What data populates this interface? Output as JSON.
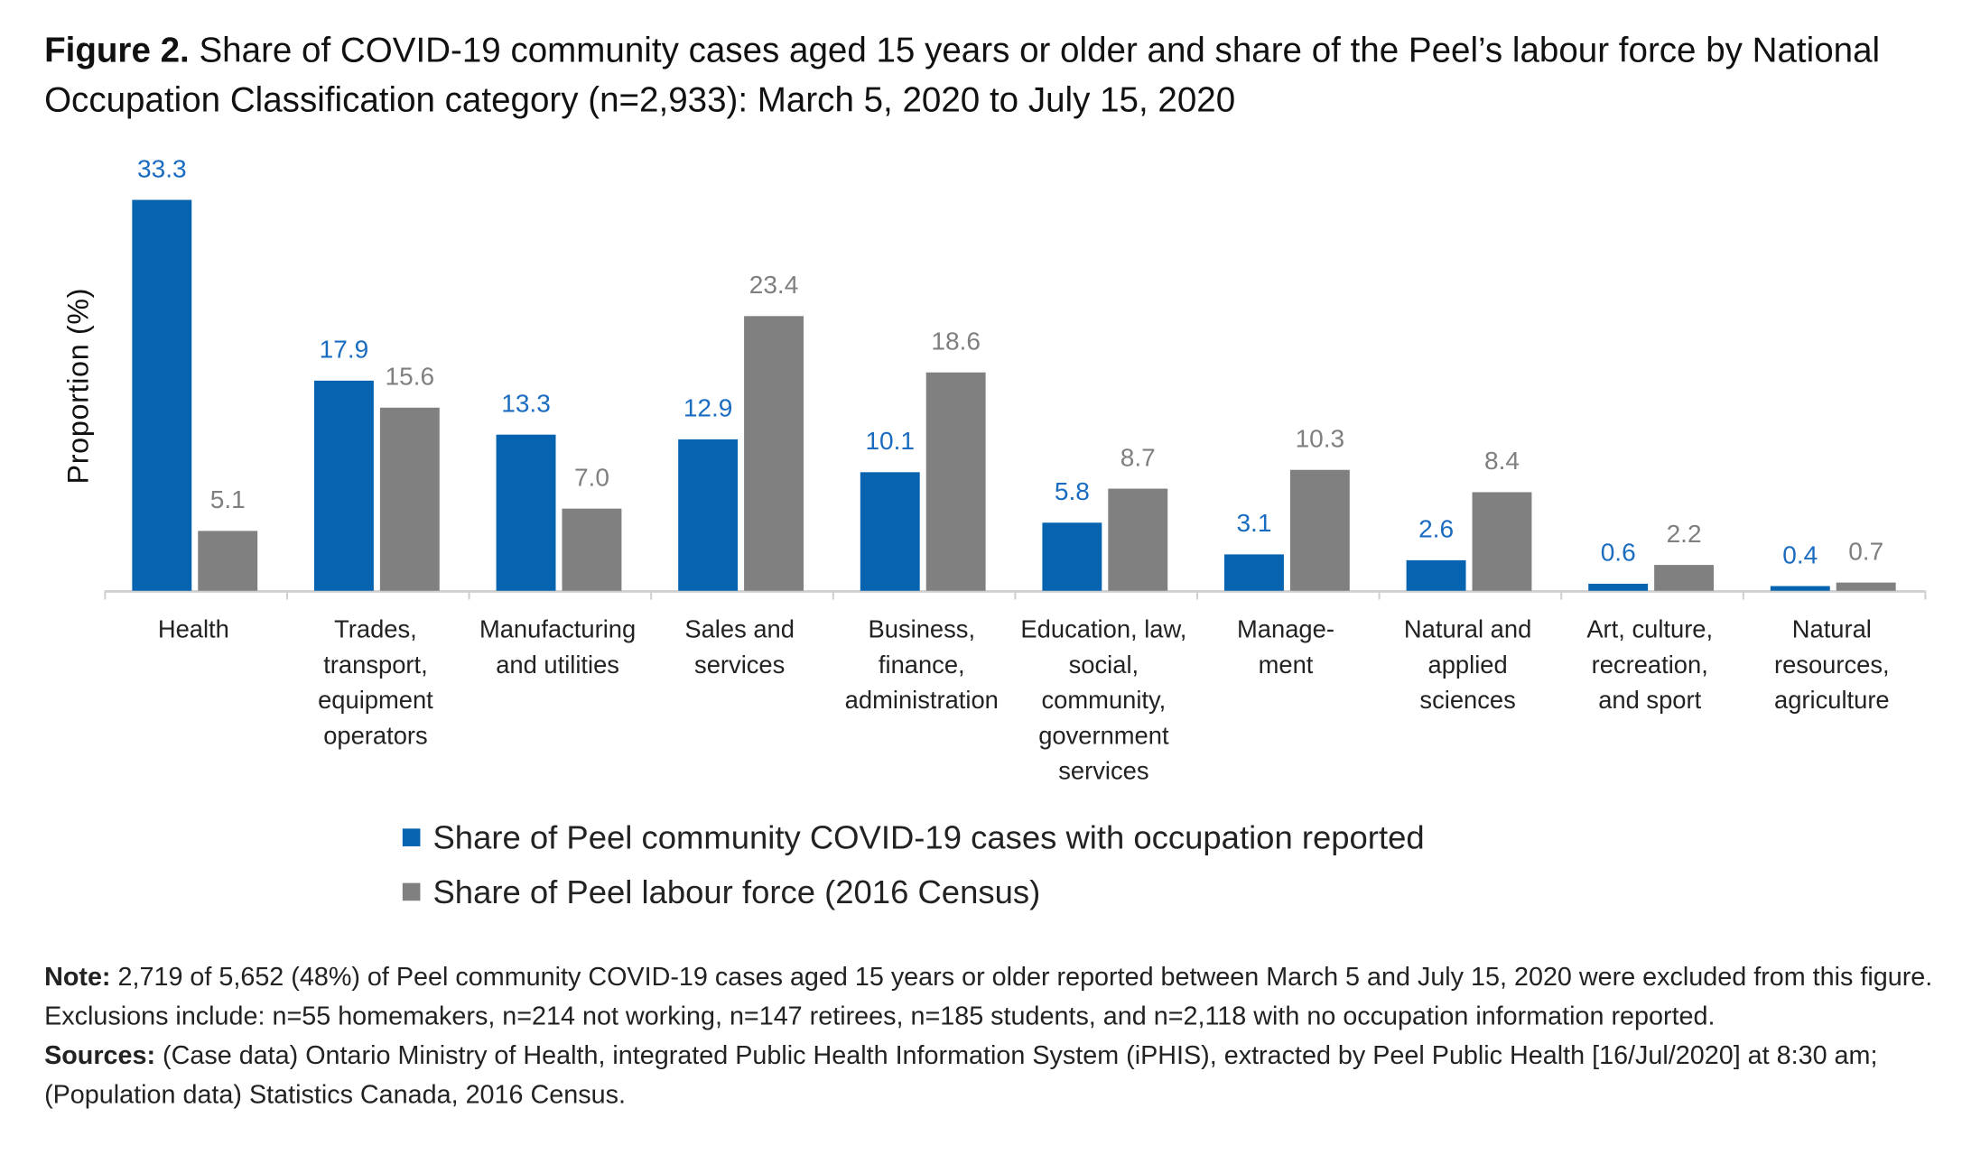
{
  "title": {
    "label": "Figure 2.",
    "text": "Share of COVID-19 community cases aged 15 years or older and share of the Peel’s labour force by National Occupation Classification category (n=2,933): March 5, 2020 to July 15, 2020"
  },
  "chart_data": {
    "type": "bar",
    "ylabel": "Proportion (%)",
    "ylim": [
      0,
      33.3
    ],
    "grid": false,
    "legend_position": "bottom",
    "categories": [
      "Health",
      "Trades,\ntransport,\nequipment\noperators",
      "Manufacturing\nand utilities",
      "Sales and\nservices",
      "Business,\nfinance,\nadministration",
      "Education, law,\nsocial,\ncommunity,\ngovernment\nservices",
      "Manage-\nment",
      "Natural and\napplied\nsciences",
      "Art, culture,\nrecreation,\nand sport",
      "Natural\nresources,\nagriculture"
    ],
    "series": [
      {
        "name": "Share of Peel community COVID-19 cases with occupation reported",
        "color": "#0563b0",
        "label_color": "#1a6cc0",
        "values": [
          33.3,
          17.9,
          13.3,
          12.9,
          10.1,
          5.8,
          3.1,
          2.6,
          0.6,
          0.4
        ],
        "labels": [
          "33.3",
          "17.9",
          "13.3",
          "12.9",
          "10.1",
          "5.8",
          "3.1",
          "2.6",
          "0.6",
          "0.4"
        ]
      },
      {
        "name": "Share of Peel labour force (2016 Census)",
        "color": "#808080",
        "label_color": "#7f7f7f",
        "values": [
          5.1,
          15.6,
          7.0,
          23.4,
          18.6,
          8.7,
          10.3,
          8.4,
          2.2,
          0.7
        ],
        "labels": [
          "5.1",
          "15.6",
          "7.0",
          "23.4",
          "18.6",
          "8.7",
          "10.3",
          "8.4",
          "2.2",
          "0.7"
        ]
      }
    ]
  },
  "notes": {
    "note_label": "Note:",
    "note_text": " 2,719 of 5,652 (48%) of Peel community COVID-19 cases aged 15 years or older reported between March 5 and July 15, 2020 were excluded from this figure. Exclusions include: n=55 homemakers, n=214 not working, n=147 retirees, n=185 students, and n=2,118 with no occupation information reported.",
    "sources_label": "Sources:",
    "sources_text": " (Case data) Ontario Ministry of Health, integrated Public Health Information System (iPHIS), extracted by Peel Public Health [16/Jul/2020] at 8:30 am; (Population data) Statistics Canada, 2016 Census."
  }
}
